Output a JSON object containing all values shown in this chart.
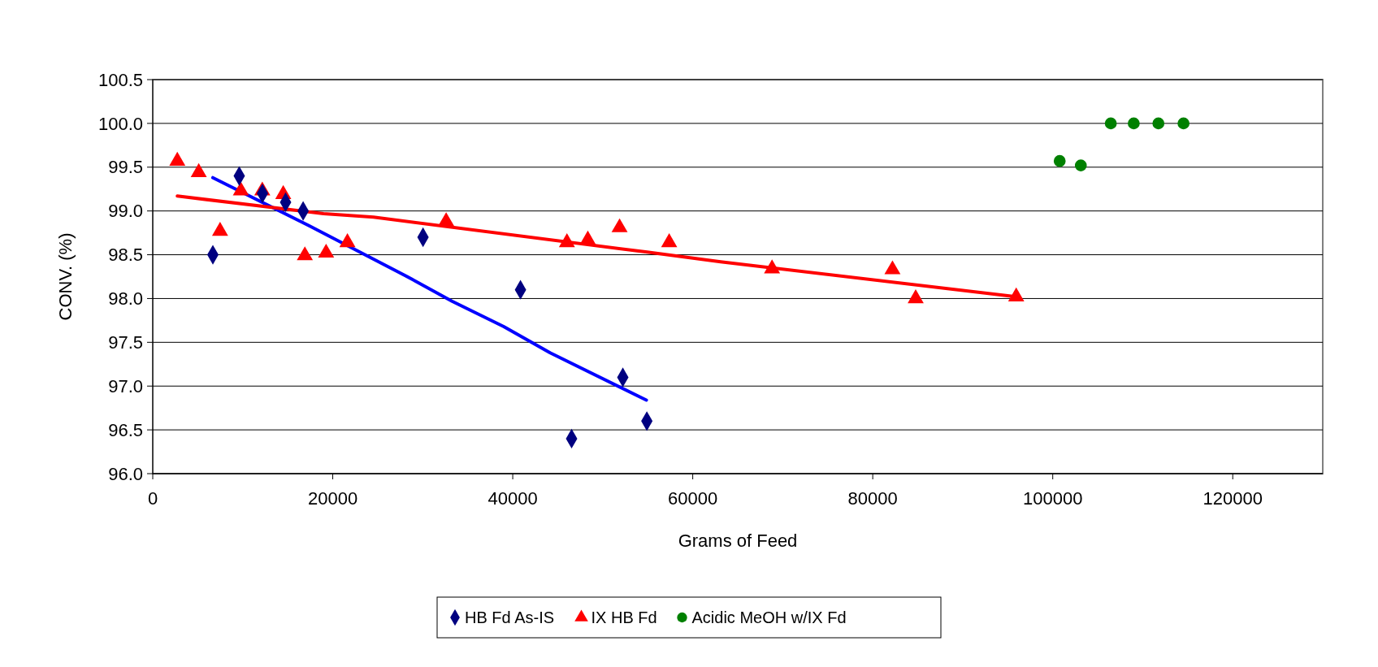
{
  "chart_data": {
    "type": "scatter",
    "xlabel": "Grams of Feed",
    "ylabel": "CONV. (%)",
    "xlim": [
      0,
      130000
    ],
    "xticks": [
      0,
      20000,
      40000,
      60000,
      80000,
      100000,
      120000
    ],
    "ylim": [
      96,
      100.5
    ],
    "yticks": [
      {
        "value": 96,
        "label": "96.0"
      },
      96.5,
      {
        "value": 97,
        "label": "97.0"
      },
      97.5,
      {
        "value": 98,
        "label": "98.0"
      },
      98.5,
      {
        "value": 99,
        "label": "99.0"
      },
      99.5,
      {
        "value": 100,
        "label": "100.0"
      },
      100.5
    ],
    "grid": "y",
    "legend": "bottom",
    "series": [
      {
        "name": "HB Fd As-IS",
        "color": "#000080",
        "marker": "diamond",
        "x": [
          6680,
          9610,
          12190,
          14760,
          16710,
          30030,
          40860,
          46540,
          52230,
          54900
        ],
        "values": [
          98.5,
          99.4,
          99.2,
          99.1,
          99.0,
          98.7,
          98.1,
          96.4,
          97.1,
          96.6
        ]
      },
      {
        "name": "IX HB Fd",
        "color": "#ff0000",
        "marker": "triangle",
        "x": [
          2730,
          5110,
          7480,
          9790,
          12170,
          14500,
          16900,
          19260,
          21630,
          32600,
          46020,
          48340,
          51870,
          57380,
          68810,
          82190,
          84770,
          95940
        ],
        "values": [
          99.57,
          99.44,
          98.77,
          99.23,
          99.23,
          99.19,
          98.49,
          98.52,
          98.64,
          98.88,
          98.64,
          98.67,
          98.81,
          98.64,
          98.34,
          98.33,
          98.0,
          98.02
        ]
      },
      {
        "name": "Acidic MeOH w/IX Fd",
        "color": "#008000",
        "marker": "circle",
        "x": [
          100770,
          103120,
          106450,
          109000,
          111740,
          114530
        ],
        "values": [
          99.57,
          99.52,
          100.0,
          100.0,
          100.0,
          100.0
        ]
      },
      {
        "type": "line",
        "color": "#0000ff",
        "marker": "none",
        "x": [
          6680,
          17400,
          28100,
          33250,
          39000,
          44150,
          54850
        ],
        "values": [
          99.38,
          98.83,
          98.26,
          97.97,
          97.68,
          97.38,
          96.84
        ]
      },
      {
        "type": "line",
        "color": "#ff0000",
        "marker": "none",
        "x": [
          2730,
          18980,
          24530,
          54930,
          63100,
          95940
        ],
        "values": [
          99.17,
          98.97,
          98.93,
          98.53,
          98.42,
          98.02
        ]
      }
    ]
  }
}
